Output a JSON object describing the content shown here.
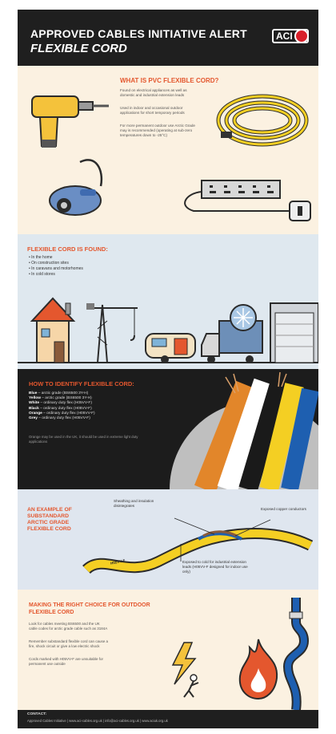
{
  "header": {
    "title": "APPROVED CABLES INITIATIVE ALERT",
    "subtitle": "FLEXIBLE CORD",
    "logo_text": "ACI"
  },
  "what_is": {
    "heading": "WHAT IS PVC FLEXIBLE CORD?",
    "paragraphs": [
      "Found on electrical appliances as well as domestic and industrial extension leads",
      "Used in indoor and occasional outdoor applications for short temporary periods",
      "For more permanent outdoor use Arctic Grade may is recommended (operating at sub-zero temperatures down to -25°C)"
    ]
  },
  "found": {
    "heading": "FLEXIBLE CORD IS FOUND:",
    "items": [
      "• In the home",
      "• On construction sites",
      "• In caravans and motorhomes",
      "• In cold stores"
    ]
  },
  "identify": {
    "heading": "HOW TO IDENTIFY FLEXIBLE CORD:",
    "codes": [
      {
        "color": "Blue",
        "text": " – arctic grade (BS6500 3Y-H)"
      },
      {
        "color": "Yellow",
        "text": " – arctic grade (BS6500 3Y-H)"
      },
      {
        "color": "White",
        "text": " – ordinary duty flex (H05VV-F)"
      },
      {
        "color": "Black",
        "text": " – ordinary duty flex (H05VV-F)"
      },
      {
        "color": "Orange",
        "text": " – ordinary duty flex (H05VV-F)"
      },
      {
        "color": "Grey",
        "text": " – ordinary duty flex (H05VV-F)"
      }
    ],
    "note": "Orange may be used in the UK, it should be used in extreme light duty applications"
  },
  "example": {
    "heading": "AN EXAMPLE OF SUBSTANDARD ARCTIC GRADE FLEXIBLE CORD",
    "ann_sheathing": "Sheathing and insulation disintegrates",
    "ann_copper": "Exposed copper conductors",
    "ann_exposed": "Exposed to cold for industrial extension leads (H05VV-F designed for indoor use only)",
    "cable_text": "H05VV-F"
  },
  "choice": {
    "heading": "MAKING THE RIGHT CHOICE FOR OUTDOOR FLEXIBLE CORD",
    "paragraphs": [
      "Look for cables meeting BS6500 and the UK cable codes for arctic grade cable such as 3184A",
      "Remember substandard flexible cord can cause a fire, shock circuit or give a low electric shock",
      "Cords marked with H05VV-F are unsuitable for permanent use outside"
    ]
  },
  "footer": {
    "label": "CONTACT:",
    "text": "Approved Cables Initiative | www.aci-cables.org.uk | info@aci-cables.org.uk | www.aciuk.org.uk"
  },
  "colors": {
    "accent": "#e4572e",
    "dark": "#1f1f1f",
    "cream": "#fbf1e1",
    "pale_blue": "#dfe8ef",
    "cable_yellow": "#f4cf23",
    "cable_blue": "#1e5fb0",
    "cable_orange": "#e2862a"
  }
}
